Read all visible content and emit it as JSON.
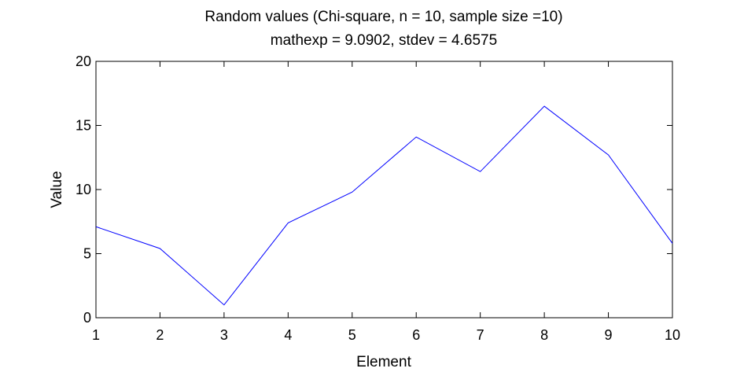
{
  "chart_data": {
    "type": "line",
    "title": "Random values (Chi-square, n = 10, sample size =10)",
    "subtitle": "mathexp = 9.0902, stdev = 4.6575",
    "xlabel": "Element",
    "ylabel": "Value",
    "xlim": [
      1,
      10
    ],
    "ylim": [
      0,
      20
    ],
    "xticks": [
      1,
      2,
      3,
      4,
      5,
      6,
      7,
      8,
      9,
      10
    ],
    "yticks": [
      0,
      5,
      10,
      15,
      20
    ],
    "grid": false,
    "series": [
      {
        "color": "#0000ff",
        "x": [
          1,
          2,
          3,
          4,
          5,
          6,
          7,
          8,
          9,
          10
        ],
        "values": [
          7.1,
          5.4,
          1.0,
          7.4,
          9.8,
          14.1,
          11.4,
          16.5,
          12.7,
          5.8
        ]
      }
    ]
  }
}
